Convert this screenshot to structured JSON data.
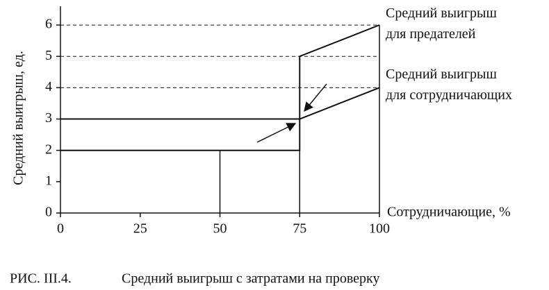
{
  "chart_data": {
    "type": "line",
    "ylabel": "Средний выигрыш, ед.",
    "xlabel": "Сотрудничающие, %",
    "xlim": [
      0,
      100
    ],
    "xticks": [
      0,
      25,
      50,
      75,
      100
    ],
    "ylim": [
      0,
      6.6
    ],
    "yticks": [
      0,
      1,
      2,
      3,
      4,
      5,
      6
    ],
    "dashed_grid_from": 4,
    "color": "#111111",
    "series": [
      {
        "name": "Средний выигрыш\nдля предателей",
        "color": "#111111",
        "x": [
          0,
          75,
          75,
          100
        ],
        "values": [
          3,
          3,
          5,
          6
        ]
      },
      {
        "name": "Средний выигрыш\nдля сотрудничающих",
        "color": "#111111",
        "x": [
          0,
          75,
          75,
          100
        ],
        "values": [
          2,
          2,
          3,
          4
        ]
      }
    ],
    "vertical_lines": [
      {
        "x": 50,
        "from": 0,
        "to": 2
      },
      {
        "x": 75,
        "from": 0,
        "to": 2
      },
      {
        "x": 100,
        "from": 0,
        "to": 6
      }
    ]
  },
  "caption": {
    "number": "РИС. III.4.",
    "text": "Средний выигрыш с затратами на проверку"
  }
}
